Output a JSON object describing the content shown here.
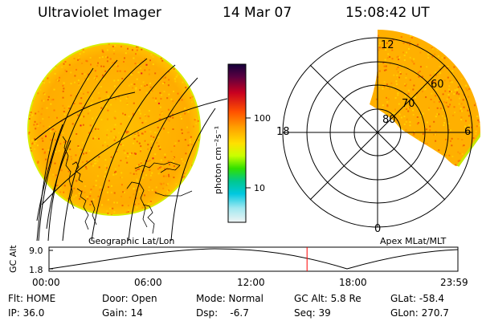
{
  "header": {
    "instrument": "Ultraviolet Imager",
    "date": "14 Mar 07",
    "time": "15:08:42 UT"
  },
  "left_panel": {
    "caption": "Geographic Lat/Lon"
  },
  "right_panel": {
    "caption": "Apex MLat/MLT",
    "mlt_labels": {
      "top": "12",
      "left": "18",
      "right": "6",
      "bottom": "0"
    },
    "mlat_labels": [
      "80",
      "70",
      "60"
    ]
  },
  "colorbar": {
    "unit_label": "photon cm⁻²s⁻¹",
    "ticks": [
      "100",
      "10"
    ]
  },
  "altitude_plot": {
    "ylabel": "GC Alt",
    "yticks": [
      "9.0",
      "1.8"
    ],
    "xticks": [
      "00:00",
      "06:00",
      "12:00",
      "18:00",
      "23:59"
    ],
    "marker_time": "15:08",
    "colors": {
      "marker": "#ff0000",
      "curve": "#000000"
    }
  },
  "status": {
    "flt": "Flt: HOME",
    "ip": "IP: 36.0",
    "door": "Door: Open",
    "gain": "Gain: 14",
    "mode": "Mode: Normal",
    "dsp": "Dsp:    -6.7",
    "gc_alt": "GC Alt: 5.8 Re",
    "seq": "Seq: 39",
    "glat": "GLat: -58.4",
    "glon": "GLon: 270.7"
  },
  "palette": {
    "aurora_base": "#ffb400",
    "aurora_hot": "#e63000",
    "limb": "#c8e600"
  }
}
